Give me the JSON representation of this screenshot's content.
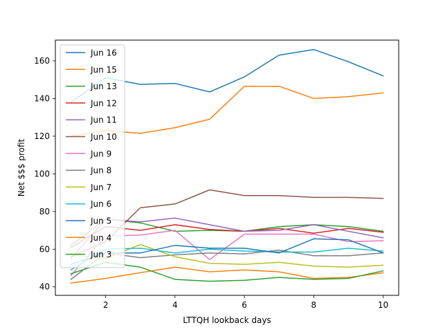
{
  "chart_data": {
    "type": "line",
    "xlabel": "LTTQH lookback days",
    "ylabel": "Net $$$ profit",
    "x": [
      1,
      2,
      3,
      4,
      5,
      6,
      7,
      8,
      9,
      10
    ],
    "xlim": [
      0.55,
      10.45
    ],
    "ylim": [
      35.5,
      171
    ],
    "xticks": [
      2,
      4,
      6,
      8,
      10
    ],
    "yticks": [
      40,
      60,
      80,
      100,
      120,
      140,
      160
    ],
    "grid": false,
    "legend_position": "top-left",
    "series": [
      {
        "name": "Jun 16",
        "color": "#1f77b4",
        "values": [
          138,
          151,
          147.5,
          148,
          143.5,
          151.5,
          163,
          166,
          159.5,
          152
        ]
      },
      {
        "name": "Jun 15",
        "color": "#ff7f0e",
        "values": [
          120,
          123,
          121.5,
          124.5,
          129,
          146.5,
          146.5,
          140,
          141,
          143
        ]
      },
      {
        "name": "Jun 13",
        "color": "#2ca02c",
        "values": [
          62,
          76,
          74,
          69.5,
          70,
          69.5,
          72,
          73,
          72,
          69.5
        ]
      },
      {
        "name": "Jun 12",
        "color": "#d62728",
        "values": [
          61,
          72,
          70,
          73,
          70.5,
          69.5,
          71,
          68.5,
          71,
          69
        ]
      },
      {
        "name": "Jun 11",
        "color": "#9467bd",
        "values": [
          55,
          76,
          74.5,
          76.5,
          73,
          69.5,
          70,
          73,
          69.5,
          66
        ]
      },
      {
        "name": "Jun 10",
        "color": "#8c564b",
        "values": [
          56,
          64,
          82,
          84,
          91.5,
          88.5,
          88.5,
          87.5,
          87.5,
          87
        ]
      },
      {
        "name": "Jun 9",
        "color": "#e377c2",
        "values": [
          46,
          67,
          67.5,
          70,
          54.5,
          68,
          68,
          68,
          64,
          64.5
        ]
      },
      {
        "name": "Jun 8",
        "color": "#7f7f7f",
        "values": [
          44,
          58,
          55.5,
          57,
          58,
          57.5,
          59.5,
          56.5,
          56.5,
          58
        ]
      },
      {
        "name": "Jun 7",
        "color": "#bcbd22",
        "values": [
          57,
          55,
          62.5,
          56,
          52.5,
          52,
          53,
          51,
          50.5,
          51.5
        ]
      },
      {
        "name": "Jun 6",
        "color": "#17becf",
        "values": [
          49,
          60,
          60.5,
          58,
          60,
          59,
          58.5,
          58.5,
          60.5,
          59
        ]
      },
      {
        "name": "Jun 5",
        "color": "#1f77b4",
        "values": [
          52,
          58,
          58,
          62,
          60.5,
          60.5,
          58,
          65.5,
          65,
          58
        ]
      },
      {
        "name": "Jun 4",
        "color": "#ff7f0e",
        "values": [
          42,
          44.5,
          47.5,
          50.5,
          48,
          49,
          48,
          44.5,
          45,
          47.5
        ]
      },
      {
        "name": "Jun 3",
        "color": "#2ca02c",
        "values": [
          47,
          53,
          50.5,
          44,
          43,
          43.5,
          45,
          44,
          44.5,
          48.5
        ]
      }
    ]
  }
}
